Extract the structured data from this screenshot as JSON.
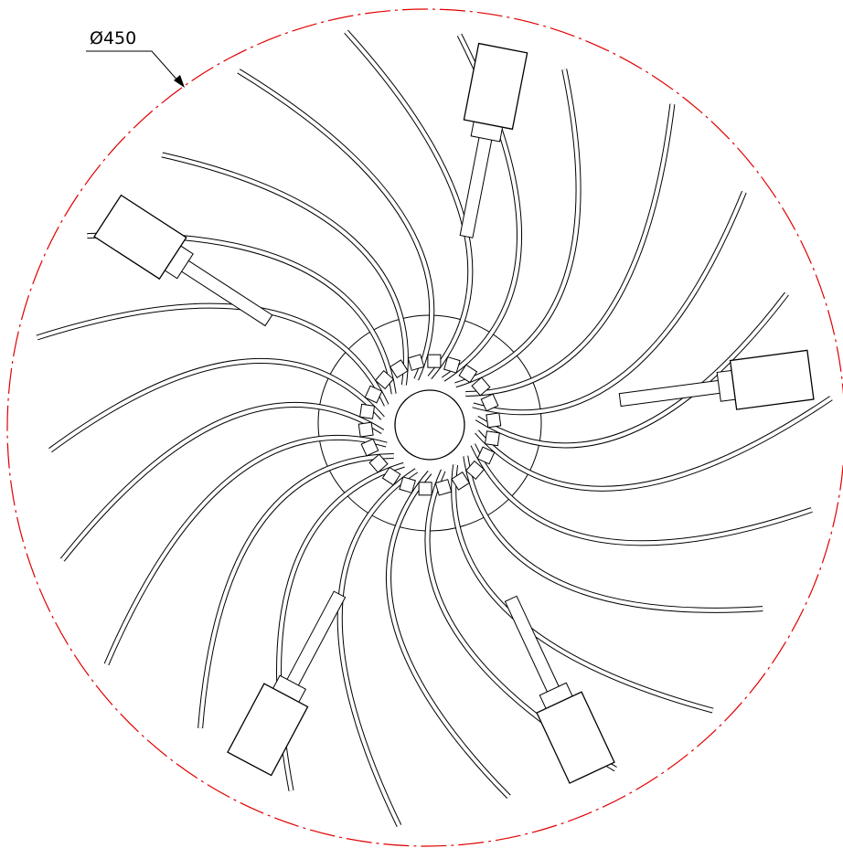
{
  "dimension": {
    "label": "Ø450"
  }
}
